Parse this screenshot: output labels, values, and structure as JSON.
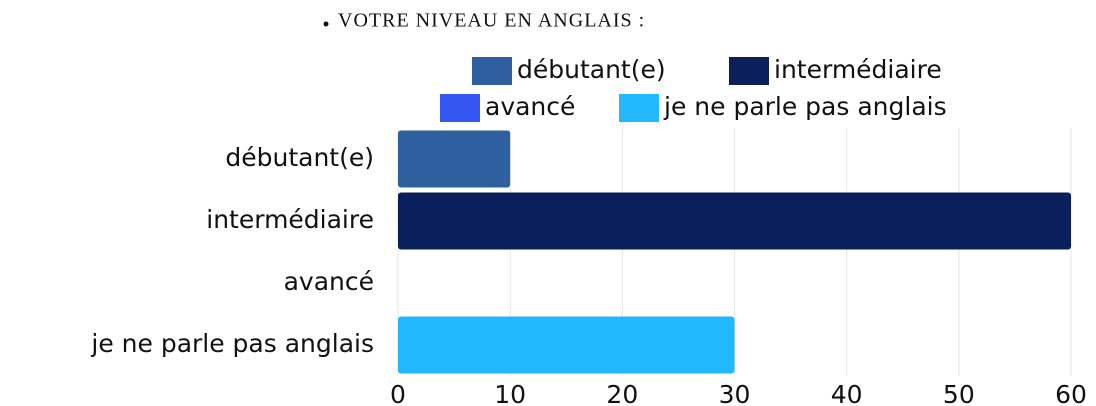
{
  "chart_data": {
    "type": "hbar",
    "title": "VOTRE NIVEAU EN ANGLAIS :",
    "categories": [
      "débutant(e)",
      "intermédiaire",
      "avancé",
      "je ne parle pas anglais"
    ],
    "values": [
      10,
      60,
      0,
      30
    ],
    "colors": [
      "#2e5f9e",
      "#0a1f5c",
      "#3355f0",
      "#22b8ff"
    ],
    "xlim": [
      0,
      60
    ],
    "xticks": [
      0,
      10,
      20,
      30,
      40,
      50,
      60
    ],
    "grid": true
  }
}
